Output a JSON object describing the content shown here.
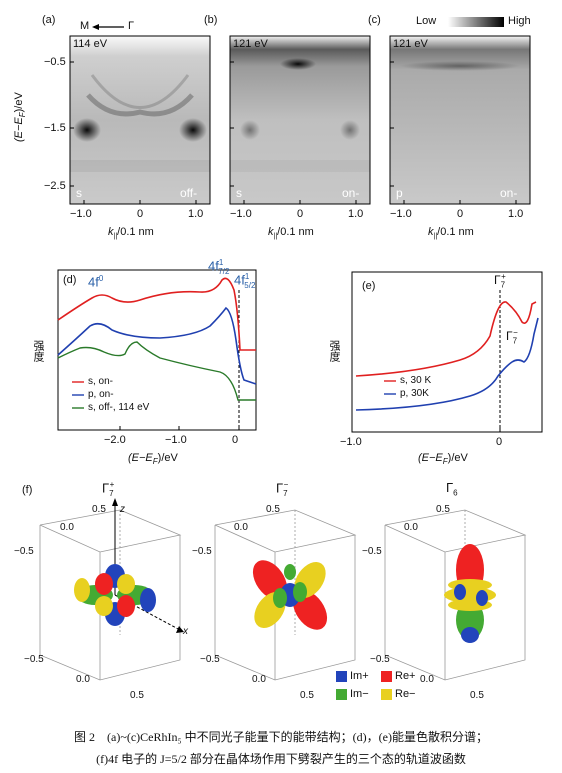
{
  "top": {
    "panel_a": {
      "label": "(a)",
      "energy": "114 eV",
      "pol": "s",
      "mode": "off-",
      "dir_left": "M",
      "dir_right": "Γ"
    },
    "panel_b": {
      "label": "(b)",
      "energy": "121 eV",
      "pol": "s",
      "mode": "on-"
    },
    "panel_c": {
      "label": "(c)",
      "energy": "121 eV",
      "pol": "p",
      "mode": "on-",
      "scale_low": "Low",
      "scale_high": "High"
    },
    "ylabel": "(E−E",
    "ylabel_sub": "F",
    "ylabel_unit": ")/eV",
    "yticks": [
      "−0.5",
      "−1.5",
      "−2.5"
    ],
    "xticks": [
      "−1.0",
      "0",
      "1.0"
    ],
    "xlabel_k": "k",
    "xlabel_sub": "||",
    "xlabel_unit": "/0.1 nm"
  },
  "panel_d": {
    "label": "(d)",
    "peak1": "4f",
    "peak1_sup": "0",
    "peak2": "4f",
    "peak2_sup": "1",
    "peak2_sub": "7/2",
    "peak3": "4f",
    "peak3_sup": "1",
    "peak3_sub": "5/2",
    "ylabel": "强度",
    "xticks": [
      "−2.0",
      "−1.0",
      "0"
    ],
    "xlabel": "(E−E",
    "xlabel_sub": "F",
    "xlabel_unit": ")/eV",
    "legend": [
      "s, on-",
      "p, on-",
      "s, off-, 114 eV"
    ],
    "colors": [
      "#e02020",
      "#2040b0",
      "#2a7a2a"
    ]
  },
  "panel_e": {
    "label": "(e)",
    "gamma7p": "Γ",
    "gamma7p_sub": "7",
    "gamma7p_sup": "+",
    "gamma7m": "Γ",
    "gamma7m_sub": "7",
    "gamma7m_sup": "−",
    "ylabel": "强度",
    "xticks": [
      "−1.0",
      "0"
    ],
    "xlabel": "(E−E",
    "xlabel_sub": "F",
    "xlabel_unit": ")/eV",
    "legend": [
      "s, 30 K",
      "p, 30K"
    ],
    "colors": [
      "#e02020",
      "#2040b0"
    ]
  },
  "panel_f": {
    "label": "(f)",
    "titles": [
      {
        "main": "Γ",
        "sub": "7",
        "sup": "+"
      },
      {
        "main": "Γ",
        "sub": "7",
        "sup": "−"
      },
      {
        "main": "Γ",
        "sub": "6",
        "sup": ""
      }
    ],
    "axis_z": "z",
    "axis_x": "x",
    "ticks": [
      "0.5",
      "0.0",
      "−0.5"
    ],
    "legend": [
      {
        "label": "Im+",
        "color": "#2244bb"
      },
      {
        "label": "Re+",
        "color": "#ee2222"
      },
      {
        "label": "Im−",
        "color": "#44aa33"
      },
      {
        "label": "Re−",
        "color": "#e8d020"
      }
    ]
  },
  "caption": {
    "line1": "图 2　(a)~(c)CeRhIn₅ 中不同光子能量下的能带结构；(d)，(e)能量色散积分谱；",
    "line2": "(f)4f 电子的 J=5/2 部分在晶体场作用下劈裂产生的三个态的轨道波函数"
  }
}
